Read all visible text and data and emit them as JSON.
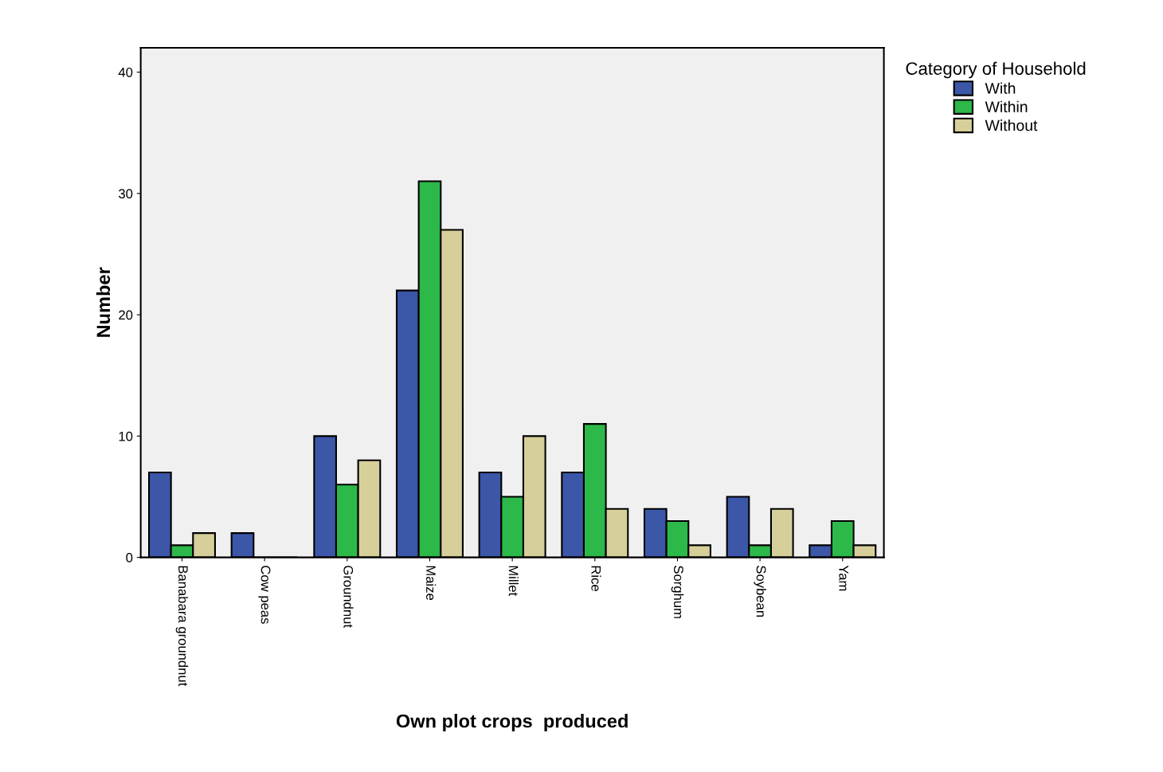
{
  "chart_data": {
    "type": "bar",
    "xlabel": "Own plot crops  produced",
    "ylabel": "Number",
    "legend_title": "Category of Household",
    "categories": [
      "Banabara groundnut",
      "Cow peas",
      "Groundnut",
      "Maize",
      "Millet",
      "Rice",
      "Sorghum",
      "Soybean",
      "Yam"
    ],
    "series": [
      {
        "name": "With",
        "color": "#3c56a8",
        "values": [
          7,
          2,
          10,
          22,
          7,
          7,
          4,
          5,
          1
        ]
      },
      {
        "name": "Within",
        "color": "#2db84a",
        "values": [
          1,
          0,
          6,
          31,
          5,
          11,
          3,
          1,
          3
        ]
      },
      {
        "name": "Without",
        "color": "#d6cf9a",
        "values": [
          2,
          0,
          8,
          27,
          10,
          4,
          1,
          4,
          1
        ]
      }
    ],
    "ylim": [
      0,
      42
    ],
    "yticks": [
      0,
      10,
      20,
      30,
      40
    ],
    "grid": false,
    "legend": "top right"
  }
}
